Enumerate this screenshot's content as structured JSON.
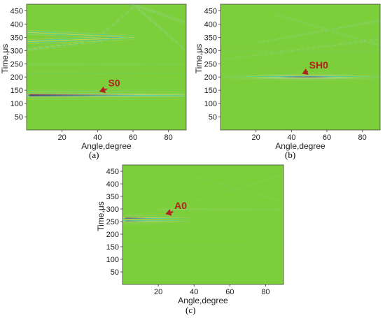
{
  "chart_data": [
    {
      "type": "heatmap",
      "caption": "(a)",
      "xlabel": "Angle,degree",
      "ylabel": "Time,μs",
      "xlim": [
        0,
        90
      ],
      "ylim": [
        0,
        475
      ],
      "xticks": [
        20,
        40,
        60,
        80
      ],
      "yticks": [
        50,
        100,
        150,
        200,
        250,
        300,
        350,
        400,
        450
      ],
      "colors": {
        "background": "#7ccf3a",
        "positive": "#b71c1c",
        "negative": "#0d2a8f",
        "light_positive": "#f3d43a",
        "light_negative": "#2fd0c8"
      },
      "annotation": {
        "label": "S0",
        "color": "#b22222",
        "text_at": [
          46,
          165
        ],
        "arrow_to": [
          41,
          145
        ]
      },
      "wave_bands": [
        {
          "t_start": 135,
          "t_end": 135,
          "angle_start": 0,
          "angle_end": 90,
          "half_width": 12,
          "cycles": 4,
          "strength": [
            1.0,
            0.35
          ]
        },
        {
          "t_start": 335,
          "t_end": 350,
          "angle_start": 0,
          "angle_end": 60,
          "half_width": 8,
          "cycles": 2,
          "strength": [
            0.55,
            0.4
          ]
        },
        {
          "t_start": 370,
          "t_end": 352,
          "angle_start": 0,
          "angle_end": 60,
          "half_width": 8,
          "cycles": 2,
          "strength": [
            0.5,
            0.4
          ]
        },
        {
          "t_start": 305,
          "t_end": 345,
          "angle_start": 0,
          "angle_end": 50,
          "half_width": 6,
          "cycles": 2,
          "strength": [
            0.4,
            0.3
          ]
        },
        {
          "t_start": 475,
          "t_end": 300,
          "angle_start": 60,
          "angle_end": 90,
          "half_width": 6,
          "cycles": 2,
          "strength": [
            0.45,
            0.3
          ]
        },
        {
          "t_start": 475,
          "t_end": 405,
          "angle_start": 60,
          "angle_end": 90,
          "half_width": 6,
          "cycles": 2,
          "strength": [
            0.4,
            0.3
          ]
        },
        {
          "t_start": 350,
          "t_end": 475,
          "angle_start": 40,
          "angle_end": 62,
          "half_width": 5,
          "cycles": 2,
          "strength": [
            0.3,
            0.35
          ]
        },
        {
          "t_start": 250,
          "t_end": 250,
          "angle_start": 0,
          "angle_end": 90,
          "half_width": 5,
          "cycles": 2,
          "strength": [
            0.18,
            0.12
          ]
        },
        {
          "t_start": 215,
          "t_end": 215,
          "angle_start": 0,
          "angle_end": 90,
          "half_width": 4,
          "cycles": 2,
          "strength": [
            0.15,
            0.1
          ]
        }
      ]
    },
    {
      "type": "heatmap",
      "caption": "(b)",
      "xlabel": "Angle,degree",
      "ylabel": "Time,μs",
      "xlim": [
        0,
        90
      ],
      "ylim": [
        0,
        475
      ],
      "xticks": [
        20,
        40,
        60,
        80
      ],
      "yticks": [
        50,
        100,
        150,
        200,
        250,
        300,
        350,
        400,
        450
      ],
      "colors": {
        "background": "#7ccf3a",
        "positive": "#b71c1c",
        "negative": "#0d2a8f",
        "light_positive": "#f3d43a",
        "light_negative": "#2fd0c8"
      },
      "annotation": {
        "label": "SH0",
        "color": "#b22222",
        "text_at": [
          50,
          232
        ],
        "arrow_to": [
          46,
          212
        ]
      },
      "wave_bands": [
        {
          "t_start": 205,
          "t_end": 205,
          "angle_start": 0,
          "angle_end": 90,
          "half_width": 10,
          "cycles": 4,
          "strength": [
            0.25,
            1.0
          ],
          "peak_angle": 48
        },
        {
          "t_start": 265,
          "t_end": 345,
          "angle_start": 0,
          "angle_end": 90,
          "half_width": 5,
          "cycles": 2,
          "strength": [
            0.15,
            0.25
          ]
        },
        {
          "t_start": 330,
          "t_end": 415,
          "angle_start": 20,
          "angle_end": 90,
          "half_width": 5,
          "cycles": 2,
          "strength": [
            0.2,
            0.3
          ]
        },
        {
          "t_start": 440,
          "t_end": 320,
          "angle_start": 30,
          "angle_end": 90,
          "half_width": 5,
          "cycles": 2,
          "strength": [
            0.2,
            0.25
          ]
        },
        {
          "t_start": 300,
          "t_end": 300,
          "angle_start": 0,
          "angle_end": 90,
          "half_width": 4,
          "cycles": 2,
          "strength": [
            0.12,
            0.12
          ]
        }
      ]
    },
    {
      "type": "heatmap",
      "caption": "(c)",
      "xlabel": "Angle,degree",
      "ylabel": "Time,μs",
      "xlim": [
        0,
        90
      ],
      "ylim": [
        0,
        475
      ],
      "xticks": [
        20,
        40,
        60,
        80
      ],
      "yticks": [
        50,
        100,
        150,
        200,
        250,
        300,
        350,
        400,
        450
      ],
      "colors": {
        "background": "#7ccf3a",
        "positive": "#b71c1c",
        "negative": "#0d2a8f",
        "light_positive": "#f3d43a",
        "light_negative": "#2fd0c8"
      },
      "annotation": {
        "label": "A0",
        "color": "#b22222",
        "text_at": [
          29,
          300
        ],
        "arrow_to": [
          24,
          280
        ]
      },
      "wave_bands": [
        {
          "t_start": 260,
          "t_end": 260,
          "angle_start": 0,
          "angle_end": 38,
          "half_width": 14,
          "cycles": 4,
          "strength": [
            1.0,
            0.1
          ]
        },
        {
          "t_start": 300,
          "t_end": 300,
          "angle_start": 20,
          "angle_end": 90,
          "half_width": 5,
          "cycles": 2,
          "strength": [
            0.2,
            0.1
          ]
        },
        {
          "t_start": 330,
          "t_end": 440,
          "angle_start": 40,
          "angle_end": 90,
          "half_width": 4,
          "cycles": 2,
          "strength": [
            0.12,
            0.18
          ]
        },
        {
          "t_start": 430,
          "t_end": 330,
          "angle_start": 40,
          "angle_end": 90,
          "half_width": 4,
          "cycles": 2,
          "strength": [
            0.12,
            0.15
          ]
        },
        {
          "t_start": 160,
          "t_end": 160,
          "angle_start": 0,
          "angle_end": 90,
          "half_width": 4,
          "cycles": 2,
          "strength": [
            0.08,
            0.05
          ]
        }
      ]
    }
  ]
}
